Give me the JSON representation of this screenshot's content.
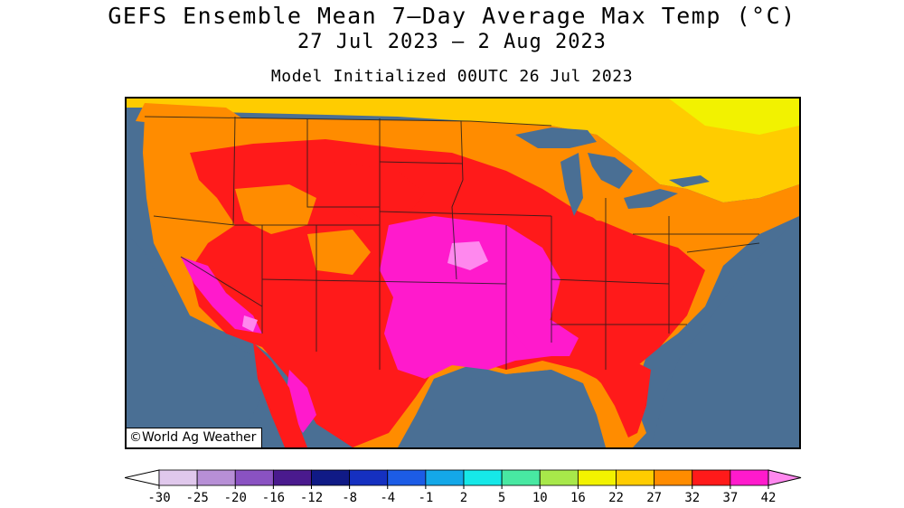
{
  "title": "GEFS Ensemble Mean 7–Day Average Max Temp (°C)",
  "subtitle": "27 Jul 2023 – 2 Aug 2023",
  "init_text": "Model Initialized 00UTC 26 Jul 2023",
  "credit": "©World Ag Weather",
  "colorbar": {
    "ticks": [
      "-30",
      "-25",
      "-20",
      "-16",
      "-12",
      "-8",
      "-4",
      "-1",
      "2",
      "5",
      "10",
      "16",
      "22",
      "27",
      "32",
      "37",
      "42"
    ],
    "colors": [
      "#e0c8ec",
      "#b78fd6",
      "#8a52c2",
      "#4a1a8e",
      "#101a86",
      "#1530c0",
      "#1c5ce6",
      "#14a8e8",
      "#16e8e8",
      "#48e8a2",
      "#a8e84a",
      "#f2f200",
      "#ffcc00",
      "#ff8c00",
      "#ff1a1a",
      "#ff1acc"
    ],
    "under_color": "#ffffff",
    "over_color": "#ff88ee"
  },
  "map": {
    "region": "Contiguous United States",
    "ocean_color": "#4a6f94",
    "lake_color": "#4a6f94"
  }
}
